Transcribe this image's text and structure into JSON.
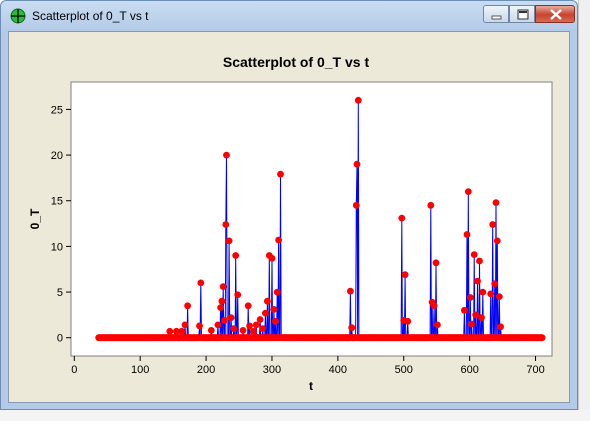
{
  "window": {
    "title": "Scatterplot of 0_T vs t",
    "icons": [
      "crosshair-app-icon",
      "minimize-icon",
      "maximize-icon",
      "close-icon"
    ]
  },
  "colors": {
    "marker": "#ff0000",
    "line": "#0000ff",
    "client_bg": "#ece9d8"
  },
  "chart_data": {
    "type": "scatter",
    "title": "Scatterplot of 0_T vs t",
    "xlabel": "t",
    "ylabel": "0_T",
    "xlim": [
      -5,
      725
    ],
    "ylim": [
      -2,
      28
    ],
    "xticks": [
      0,
      100,
      200,
      300,
      400,
      500,
      600,
      700
    ],
    "yticks": [
      0,
      5,
      10,
      15,
      20,
      25
    ],
    "grid": false,
    "connect_points": true,
    "baseline": {
      "x_from": 37,
      "x_to": 710,
      "y": 0
    },
    "points": [
      {
        "x": 145,
        "y": 0.7
      },
      {
        "x": 155,
        "y": 0.7
      },
      {
        "x": 163,
        "y": 0.7
      },
      {
        "x": 168,
        "y": 1.4
      },
      {
        "x": 172,
        "y": 3.5
      },
      {
        "x": 190,
        "y": 1.3
      },
      {
        "x": 192,
        "y": 6.0
      },
      {
        "x": 208,
        "y": 0.8
      },
      {
        "x": 218,
        "y": 1.4
      },
      {
        "x": 222,
        "y": 3.3
      },
      {
        "x": 224,
        "y": 4.0
      },
      {
        "x": 226,
        "y": 5.6
      },
      {
        "x": 228,
        "y": 1.9
      },
      {
        "x": 230,
        "y": 12.4
      },
      {
        "x": 231,
        "y": 20.0
      },
      {
        "x": 235,
        "y": 10.6
      },
      {
        "x": 238,
        "y": 2.2
      },
      {
        "x": 242,
        "y": 1.0
      },
      {
        "x": 245,
        "y": 9.0
      },
      {
        "x": 248,
        "y": 4.7
      },
      {
        "x": 256,
        "y": 0.8
      },
      {
        "x": 264,
        "y": 3.5
      },
      {
        "x": 266,
        "y": 1.3
      },
      {
        "x": 272,
        "y": 0.7
      },
      {
        "x": 276,
        "y": 1.4
      },
      {
        "x": 282,
        "y": 2.0
      },
      {
        "x": 286,
        "y": 1.0
      },
      {
        "x": 290,
        "y": 2.7
      },
      {
        "x": 293,
        "y": 4.0
      },
      {
        "x": 296,
        "y": 9.0
      },
      {
        "x": 300,
        "y": 8.7
      },
      {
        "x": 303,
        "y": 3.1
      },
      {
        "x": 305,
        "y": 1.8
      },
      {
        "x": 308,
        "y": 5.0
      },
      {
        "x": 310,
        "y": 10.7
      },
      {
        "x": 313,
        "y": 17.9
      },
      {
        "x": 419,
        "y": 5.1
      },
      {
        "x": 421,
        "y": 1.1
      },
      {
        "x": 428,
        "y": 14.5
      },
      {
        "x": 429,
        "y": 19.0
      },
      {
        "x": 431,
        "y": 26.0
      },
      {
        "x": 497,
        "y": 13.1
      },
      {
        "x": 500,
        "y": 1.9
      },
      {
        "x": 502,
        "y": 6.9
      },
      {
        "x": 506,
        "y": 1.8
      },
      {
        "x": 541,
        "y": 14.5
      },
      {
        "x": 543,
        "y": 3.9
      },
      {
        "x": 546,
        "y": 3.5
      },
      {
        "x": 549,
        "y": 8.2
      },
      {
        "x": 551,
        "y": 1.4
      },
      {
        "x": 592,
        "y": 3.0
      },
      {
        "x": 596,
        "y": 11.3
      },
      {
        "x": 598,
        "y": 16.0
      },
      {
        "x": 601,
        "y": 4.4
      },
      {
        "x": 603,
        "y": 1.5
      },
      {
        "x": 607,
        "y": 9.1
      },
      {
        "x": 609,
        "y": 2.5
      },
      {
        "x": 612,
        "y": 6.2
      },
      {
        "x": 615,
        "y": 8.4
      },
      {
        "x": 618,
        "y": 2.2
      },
      {
        "x": 620,
        "y": 5.0
      },
      {
        "x": 632,
        "y": 4.8
      },
      {
        "x": 635,
        "y": 12.4
      },
      {
        "x": 638,
        "y": 5.9
      },
      {
        "x": 640,
        "y": 14.8
      },
      {
        "x": 642,
        "y": 10.6
      },
      {
        "x": 645,
        "y": 4.5
      },
      {
        "x": 647,
        "y": 1.2
      }
    ]
  }
}
